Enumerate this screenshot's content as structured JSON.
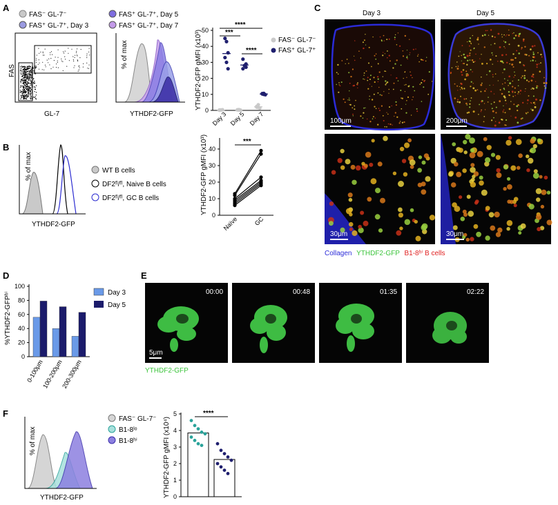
{
  "panels": {
    "A": {
      "letter": "A",
      "legend": [
        "FAS⁻ GL-7⁻",
        "FAS⁺ GL-7⁺, Day 3",
        "FAS⁺ GL-7⁺, Day 5",
        "FAS⁺ GL-7⁺, Day 7"
      ],
      "facs_x": "GL-7",
      "facs_y": "FAS",
      "hist_x": "YTHDF2-GFP",
      "hist_y": "% of max",
      "scatter_y": "YTHDF2-GFP gMFI (x10³)",
      "scatter_legend": [
        "FAS⁻ GL-7⁻",
        "FAS⁺ GL-7⁺"
      ],
      "sig": [
        "****",
        "***",
        "****"
      ],
      "colors": {
        "neg": "#c9c9c9",
        "d3": "#9a9ae0",
        "d5": "#7f6ee0",
        "d7": "#c39ae8",
        "pos": "#1f1f6e"
      }
    },
    "B": {
      "letter": "B",
      "legend": [
        "WT B cells",
        "DF2ᶠˡ/ᶠˡ, Naive B cells",
        "DF2ᶠˡ/ᶠˡ, GC B cells"
      ],
      "hist_x": "YTHDF2-GFP",
      "hist_y": "% of max",
      "paired_y": "YTHDF2-GFP gMFI (x10³)",
      "sig": "***"
    },
    "C": {
      "letter": "C",
      "titles": [
        "Day 3",
        "Day 5"
      ],
      "scalebars": [
        "100μm",
        "200μm",
        "30μm",
        "30μm"
      ],
      "caption": [
        "Collagen",
        "YTHDF2-GFP",
        "B1-8ʰⁱ B cells"
      ],
      "caption_colors": [
        "#2b2bd8",
        "#3cc43c",
        "#e02020"
      ]
    },
    "D": {
      "letter": "D",
      "ylabel": "%YTHDF2-GFPʰⁱ",
      "legend": [
        "Day 3",
        "Day 5"
      ],
      "colors": [
        "#6a9ae8",
        "#1b1b6b"
      ]
    },
    "E": {
      "letter": "E",
      "timestamps": [
        "00:00",
        "00:48",
        "01:35",
        "02:22"
      ],
      "scalebar": "5μm",
      "caption": "YTHDF2-GFP"
    },
    "F": {
      "letter": "F",
      "legend": [
        "FAS⁻ GL-7⁻",
        "B1-8ˡᵒ",
        "B1-8ʰⁱ"
      ],
      "hist_x": "YTHDF2-GFP",
      "hist_y": "% of max",
      "bar_y": "YTHDF2-GFP gMFI (x10⁴)",
      "sig": "****"
    }
  },
  "chart_data": [
    {
      "type": "scatter",
      "panel": "A",
      "categories": [
        "Day 3",
        "Day 5",
        "Day 7"
      ],
      "ylim": [
        0,
        50
      ],
      "yticks": [
        0,
        10,
        20,
        30,
        40,
        50
      ],
      "series": [
        {
          "name": "FAS⁻ GL-7⁻",
          "values": [
            [
              0.3,
              0.2,
              0.4,
              0.1,
              0.3
            ],
            [
              0.3,
              0.5,
              0.2,
              0.4,
              0.2
            ],
            [
              2.0,
              3.5,
              1.5,
              2.5,
              1.8
            ]
          ]
        },
        {
          "name": "FAS⁺ GL-7⁺",
          "values": [
            [
              45,
              43,
              36,
              33,
              30,
              26
            ],
            [
              32,
              28,
              27,
              26,
              28,
              29
            ],
            [
              10.5,
              10.0,
              9.8,
              10.3,
              10.6
            ]
          ]
        }
      ]
    },
    {
      "type": "line",
      "panel": "B",
      "categories": [
        "Naïve",
        "GC"
      ],
      "ylim": [
        0,
        40
      ],
      "yticks": [
        0,
        10,
        20,
        30,
        40
      ],
      "pairs": [
        [
          13,
          39
        ],
        [
          12,
          37
        ],
        [
          10,
          23
        ],
        [
          9,
          21
        ],
        [
          8,
          20
        ],
        [
          7,
          19
        ],
        [
          6,
          18
        ]
      ]
    },
    {
      "type": "bar",
      "panel": "D",
      "categories": [
        "0-100μm",
        "100-200μm",
        "200-300μm"
      ],
      "ylim": [
        0,
        100
      ],
      "yticks": [
        0,
        20,
        40,
        60,
        80,
        100
      ],
      "series": [
        {
          "name": "Day 3",
          "values": [
            56,
            40,
            29
          ]
        },
        {
          "name": "Day 5",
          "values": [
            79,
            71,
            63
          ]
        }
      ]
    },
    {
      "type": "bar",
      "panel": "F",
      "categories": [
        "B1-8ˡᵒ",
        "B1-8ʰⁱ"
      ],
      "ylim": [
        0,
        5
      ],
      "yticks": [
        0,
        1,
        2,
        3,
        4,
        5
      ],
      "values": [
        3.85,
        2.25
      ],
      "points": [
        [
          4.6,
          4.3,
          4.1,
          3.9,
          3.8,
          3.6,
          3.4,
          3.2,
          3.1
        ],
        [
          3.2,
          2.8,
          2.6,
          2.4,
          2.2,
          2.0,
          1.8,
          1.6,
          1.4
        ]
      ]
    }
  ]
}
